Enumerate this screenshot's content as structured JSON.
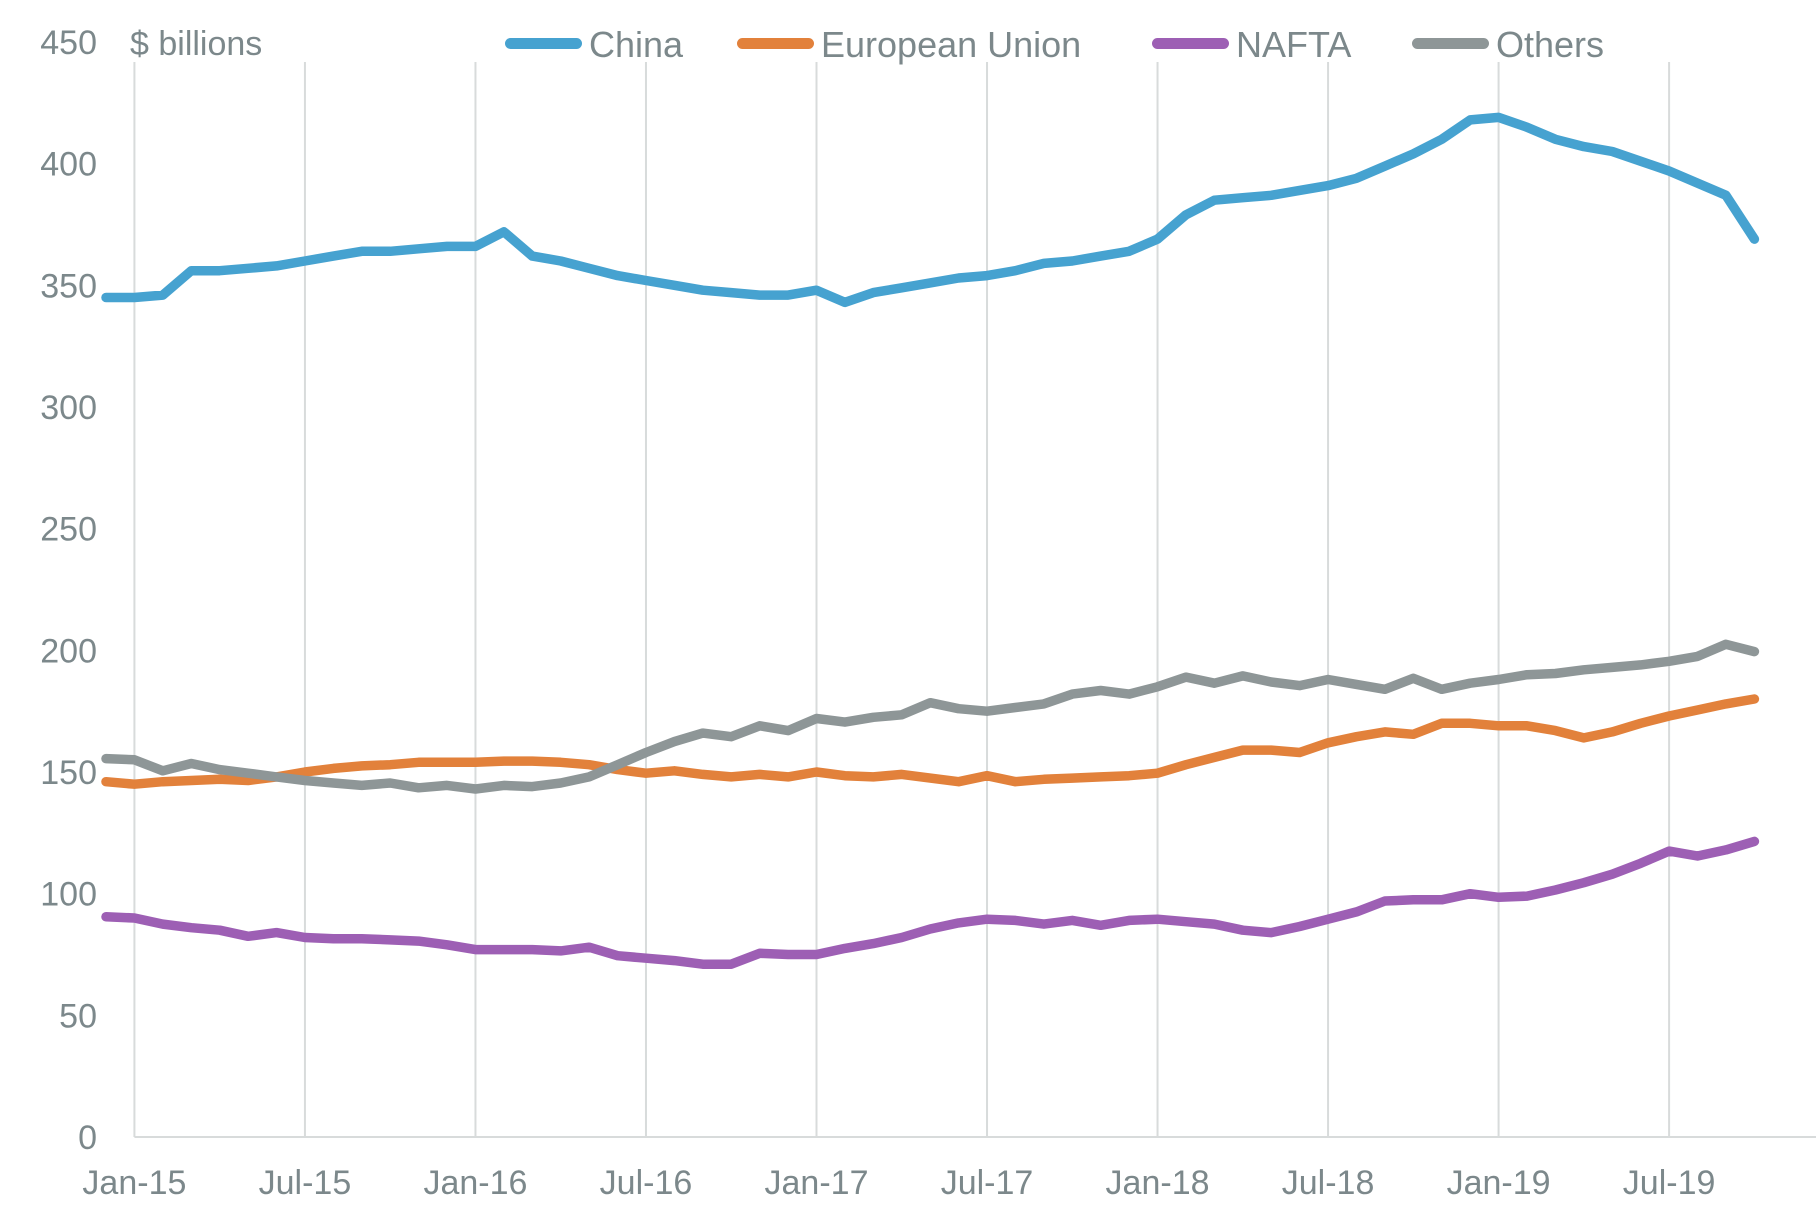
{
  "page": {
    "background": "#ffffff"
  },
  "chart_data": {
    "type": "line",
    "title": "",
    "unit_label": "$ billions",
    "xlabel": "",
    "ylabel": "$ billions",
    "ylim": [
      0,
      450
    ],
    "y_ticks": [
      0,
      50,
      100,
      150,
      200,
      250,
      300,
      350,
      400,
      450
    ],
    "grid": "vertical-only",
    "legend_position": "top-center",
    "x_tick_labels": [
      "Jan-15",
      "Jul-15",
      "Jan-16",
      "Jul-16",
      "Jan-17",
      "Jul-17",
      "Jan-18",
      "Jul-18",
      "Jan-19",
      "Jul-19"
    ],
    "x_tick_month_indices": [
      1,
      7,
      13,
      19,
      25,
      31,
      37,
      43,
      49,
      55
    ],
    "categories": [
      "Dec-14",
      "Jan-15",
      "Feb-15",
      "Mar-15",
      "Apr-15",
      "May-15",
      "Jun-15",
      "Jul-15",
      "Aug-15",
      "Sep-15",
      "Oct-15",
      "Nov-15",
      "Dec-15",
      "Jan-16",
      "Feb-16",
      "Mar-16",
      "Apr-16",
      "May-16",
      "Jun-16",
      "Jul-16",
      "Aug-16",
      "Sep-16",
      "Oct-16",
      "Nov-16",
      "Dec-16",
      "Jan-17",
      "Feb-17",
      "Mar-17",
      "Apr-17",
      "May-17",
      "Jun-17",
      "Jul-17",
      "Aug-17",
      "Sep-17",
      "Oct-17",
      "Nov-17",
      "Dec-17",
      "Jan-18",
      "Feb-18",
      "Mar-18",
      "Apr-18",
      "May-18",
      "Jun-18",
      "Jul-18",
      "Aug-18",
      "Sep-18",
      "Oct-18",
      "Nov-18",
      "Dec-18",
      "Jan-19",
      "Feb-19",
      "Mar-19",
      "Apr-19",
      "May-19",
      "Jun-19",
      "Jul-19",
      "Aug-19",
      "Sep-19",
      "Oct-19"
    ],
    "series": [
      {
        "name": "China",
        "color": "#46A2D0",
        "values": [
          345,
          345,
          346,
          356,
          356,
          357,
          358,
          360,
          362,
          364,
          364,
          365,
          366,
          366,
          372,
          362,
          360,
          357,
          354,
          352,
          350,
          348,
          347,
          346,
          346,
          348,
          343,
          347,
          349,
          351,
          353,
          354,
          356,
          359,
          360,
          362,
          364,
          369,
          379,
          385,
          386,
          387,
          389,
          391,
          394,
          399,
          404,
          410,
          418,
          419,
          415,
          410,
          407,
          405,
          401,
          397,
          392,
          387,
          369
        ]
      },
      {
        "name": "European Union",
        "color": "#E2813B",
        "values": [
          146,
          145,
          146,
          146.5,
          147,
          146.5,
          148,
          150,
          151.5,
          152.5,
          153,
          154,
          154,
          154,
          154.5,
          154.5,
          154,
          153,
          151,
          149.5,
          150.5,
          149,
          148,
          149,
          148,
          150,
          148.5,
          148,
          149,
          147.5,
          146,
          148.5,
          146,
          147,
          147.5,
          148,
          148.5,
          149.5,
          153,
          156,
          159,
          159,
          158,
          162,
          164.5,
          166.5,
          165.5,
          170,
          170,
          169,
          169,
          167,
          164,
          166.5,
          170,
          173,
          175.5,
          178,
          180
        ]
      },
      {
        "name": "NAFTA",
        "color": "#9D5FB4",
        "values": [
          90.5,
          90,
          87.5,
          86,
          85,
          82.5,
          84,
          82,
          81.5,
          81.5,
          81,
          80.5,
          79,
          77,
          77,
          77,
          76.5,
          78,
          74.5,
          73.5,
          72.5,
          71,
          71,
          75.5,
          75,
          75,
          77.5,
          79.5,
          82,
          85.5,
          88,
          89.5,
          89,
          87.5,
          89,
          87,
          89,
          89.5,
          88.5,
          87.5,
          85,
          84,
          86.5,
          89.5,
          92.5,
          97,
          97.5,
          97.5,
          100,
          98.5,
          99,
          101.5,
          104.5,
          108,
          112.5,
          117.5,
          115.5,
          118,
          121.5
        ]
      },
      {
        "name": "Others",
        "color": "#8E9697",
        "values": [
          155.5,
          155,
          150.5,
          153.5,
          151,
          149.5,
          148,
          146.5,
          145.5,
          144.5,
          145.5,
          143.5,
          144.5,
          143,
          144.5,
          144,
          145.5,
          148,
          153,
          158,
          162.5,
          166,
          164.5,
          169,
          167,
          172,
          170.5,
          172.5,
          173.5,
          178.5,
          176,
          175,
          176.5,
          178,
          182,
          183.5,
          182,
          185,
          189,
          186.5,
          189.5,
          187,
          185.5,
          188,
          186,
          184,
          188.5,
          184,
          186.5,
          188,
          190,
          190.5,
          192,
          193,
          194,
          195.5,
          197.5,
          202.5,
          199.5
        ]
      }
    ],
    "style": {
      "text_color": "#7C888B",
      "gridline_color": "#D8DBDB",
      "line_width": 9.5
    }
  }
}
